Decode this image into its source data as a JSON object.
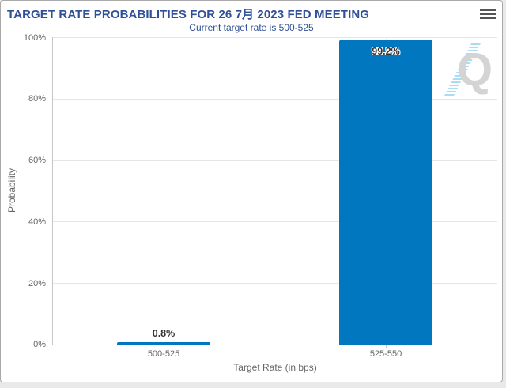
{
  "header": {
    "title": "TARGET RATE PROBABILITIES FOR 26 7月 2023 FED MEETING",
    "subtitle": "Current target rate is 500-525"
  },
  "controls": {
    "menu_icon": "hamburger-menu-icon"
  },
  "watermark": {
    "letter": "Q"
  },
  "colors": {
    "accent_navy": "#2f4f96",
    "bar_blue": "#0077bf",
    "grid_line": "#e6e6e6",
    "grid_line_vertical": "#ececec",
    "axis_line": "#c6c6c6",
    "tick_text": "#666666",
    "data_label_text": "#333333",
    "burger_gray": "#555555",
    "card_border": "#a9a9a9",
    "card_background": "#ffffff",
    "page_background": "#e9e9e9",
    "watermark_gray": "#d4d4d4",
    "watermark_blue": "#a9ddf5"
  },
  "chart_data": {
    "type": "bar",
    "title": "TARGET RATE PROBABILITIES FOR 26 7月 2023 FED MEETING",
    "subtitle": "Current target rate is 500-525",
    "categories": [
      "500-525",
      "525-550"
    ],
    "values": [
      0.8,
      99.2
    ],
    "data_labels": [
      "0.8%",
      "99.2%"
    ],
    "xlabel": "Target Rate (in bps)",
    "ylabel": "Probability",
    "ylim": [
      0,
      100
    ],
    "yticks": [
      "0%",
      "20%",
      "40%",
      "60%",
      "80%",
      "100%"
    ],
    "grid": true,
    "legend": false
  }
}
